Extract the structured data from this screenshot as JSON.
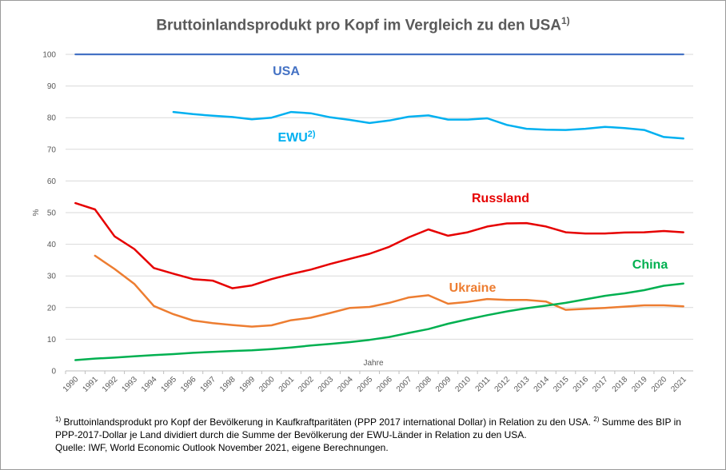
{
  "chart_data": {
    "type": "line",
    "title": "Bruttoinlandsprodukt pro Kopf im Vergleich zu den USA",
    "title_sup": "1)",
    "xlabel": "Jahre",
    "ylabel": "%",
    "ylim": [
      0,
      100
    ],
    "yticks": [
      "0",
      "10",
      "20",
      "30",
      "40",
      "50",
      "60",
      "70",
      "80",
      "90",
      "100"
    ],
    "grid": "horizontal",
    "categories": [
      "1990",
      "1991",
      "1992",
      "1993",
      "1994",
      "1995",
      "1996",
      "1997",
      "1998",
      "1999",
      "2000",
      "2001",
      "2002",
      "2003",
      "2004",
      "2005",
      "2006",
      "2007",
      "2008",
      "2009",
      "2010",
      "2011",
      "2012",
      "2013",
      "2014",
      "2015",
      "2016",
      "2017",
      "2018",
      "2019",
      "2020",
      "2021"
    ],
    "series": [
      {
        "name": "USA",
        "name_sup": "",
        "color": "#4472C4",
        "values": [
          100,
          100,
          100,
          100,
          100,
          100,
          100,
          100,
          100,
          100,
          100,
          100,
          100,
          100,
          100,
          100,
          100,
          100,
          100,
          100,
          100,
          100,
          100,
          100,
          100,
          100,
          100,
          100,
          100,
          100,
          100,
          100
        ]
      },
      {
        "name": "EWU",
        "name_sup": "2)",
        "color": "#00B0F0",
        "values": [
          null,
          null,
          null,
          null,
          null,
          81.8,
          81.1,
          80.6,
          80.2,
          79.5,
          80.0,
          81.8,
          81.4,
          80.1,
          79.3,
          78.3,
          79.1,
          80.3,
          80.7,
          79.4,
          79.4,
          79.8,
          77.7,
          76.5,
          76.2,
          76.1,
          76.5,
          77.1,
          76.7,
          76.1,
          73.9,
          73.4
        ]
      },
      {
        "name": "Russland",
        "name_sup": "",
        "color": "#E60000",
        "values": [
          53.0,
          51.0,
          42.5,
          38.5,
          32.5,
          30.7,
          29.0,
          28.5,
          26.1,
          27.0,
          29.0,
          30.6,
          32.0,
          33.8,
          35.4,
          37.0,
          39.2,
          42.2,
          44.7,
          42.7,
          43.8,
          45.6,
          46.6,
          46.7,
          45.6,
          43.8,
          43.4,
          43.4,
          43.7,
          43.8,
          44.2,
          43.8
        ]
      },
      {
        "name": "Ukraine",
        "name_sup": "",
        "color": "#ED7D31",
        "values": [
          null,
          36.4,
          32.2,
          27.5,
          20.5,
          17.9,
          15.9,
          15.1,
          14.5,
          14.0,
          14.4,
          16.0,
          16.8,
          18.3,
          19.9,
          20.2,
          21.5,
          23.2,
          23.9,
          21.2,
          21.8,
          22.7,
          22.4,
          22.4,
          21.9,
          19.3,
          19.6,
          19.9,
          20.3,
          20.7,
          20.7,
          20.4
        ]
      },
      {
        "name": "China",
        "name_sup": "",
        "color": "#00B050",
        "values": [
          3.4,
          3.9,
          4.2,
          4.6,
          5.0,
          5.3,
          5.7,
          6.0,
          6.3,
          6.5,
          6.9,
          7.4,
          8.0,
          8.5,
          9.1,
          9.8,
          10.7,
          12.0,
          13.2,
          14.9,
          16.3,
          17.6,
          18.8,
          19.8,
          20.6,
          21.5,
          22.6,
          23.7,
          24.5,
          25.5,
          26.9,
          27.6
        ]
      }
    ]
  },
  "footnote": {
    "sup1": "1)",
    "text1": " Bruttoinlandsprodukt pro Kopf der Bevölkerung in Kaufkraftparitäten (PPP 2017 international Dollar) in Relation zu den USA. ",
    "sup2": "2)",
    "text2": " Summe des BIP in PPP-2017-Dollar je Land dividiert durch die Summe der Bevölkerung der EWU-Länder in Relation zu den USA.",
    "source": "Quelle: IWF, World Economic Outlook November 2021, eigene Berechnungen."
  }
}
